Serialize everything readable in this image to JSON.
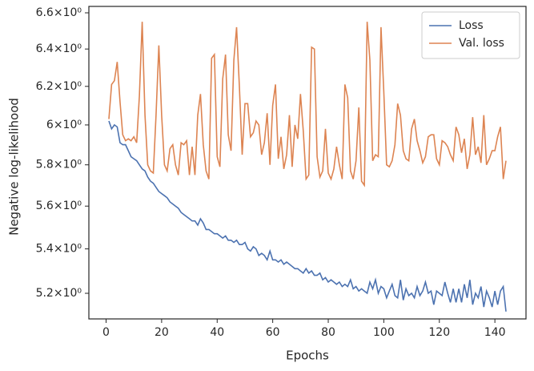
{
  "chart_data": {
    "type": "line",
    "yscale": "log",
    "legend": "upper right",
    "x_label": "Epochs",
    "y_label": "Negative log-likelihood",
    "x": [
      1,
      2,
      3,
      4,
      5,
      6,
      7,
      8,
      9,
      10,
      11,
      12,
      13,
      14,
      15,
      16,
      17,
      18,
      19,
      20,
      21,
      22,
      23,
      24,
      25,
      26,
      27,
      28,
      29,
      30,
      31,
      32,
      33,
      34,
      35,
      36,
      37,
      38,
      39,
      40,
      41,
      42,
      43,
      44,
      45,
      46,
      47,
      48,
      49,
      50,
      51,
      52,
      53,
      54,
      55,
      56,
      57,
      58,
      59,
      60,
      61,
      62,
      63,
      64,
      65,
      66,
      67,
      68,
      69,
      70,
      71,
      72,
      73,
      74,
      75,
      76,
      77,
      78,
      79,
      80,
      81,
      82,
      83,
      84,
      85,
      86,
      87,
      88,
      89,
      90,
      91,
      92,
      93,
      94,
      95,
      96,
      97,
      98,
      99,
      100,
      101,
      102,
      103,
      104,
      105,
      106,
      107,
      108,
      109,
      110,
      111,
      112,
      113,
      114,
      115,
      116,
      117,
      118,
      119,
      120,
      121,
      122,
      123,
      124,
      125,
      126,
      127,
      128,
      129,
      130,
      131,
      132,
      133,
      134,
      135,
      136,
      137,
      138,
      139,
      140,
      141,
      142,
      143,
      144
    ],
    "series": [
      {
        "name": "Loss",
        "color": "#4c72b0",
        "values": [
          6.02,
          5.98,
          6.0,
          5.99,
          5.91,
          5.9,
          5.9,
          5.87,
          5.84,
          5.83,
          5.82,
          5.8,
          5.78,
          5.77,
          5.74,
          5.72,
          5.71,
          5.69,
          5.67,
          5.66,
          5.65,
          5.64,
          5.62,
          5.61,
          5.6,
          5.59,
          5.57,
          5.56,
          5.55,
          5.54,
          5.53,
          5.53,
          5.51,
          5.54,
          5.52,
          5.49,
          5.49,
          5.48,
          5.47,
          5.47,
          5.46,
          5.45,
          5.46,
          5.44,
          5.44,
          5.43,
          5.44,
          5.42,
          5.42,
          5.43,
          5.4,
          5.39,
          5.41,
          5.4,
          5.37,
          5.38,
          5.37,
          5.35,
          5.39,
          5.35,
          5.35,
          5.34,
          5.35,
          5.33,
          5.34,
          5.33,
          5.32,
          5.31,
          5.31,
          5.3,
          5.29,
          5.31,
          5.29,
          5.3,
          5.28,
          5.28,
          5.29,
          5.26,
          5.27,
          5.25,
          5.26,
          5.25,
          5.24,
          5.25,
          5.23,
          5.24,
          5.23,
          5.26,
          5.22,
          5.23,
          5.21,
          5.22,
          5.21,
          5.2,
          5.25,
          5.22,
          5.26,
          5.2,
          5.23,
          5.22,
          5.18,
          5.21,
          5.24,
          5.19,
          5.18,
          5.26,
          5.17,
          5.22,
          5.19,
          5.2,
          5.18,
          5.23,
          5.19,
          5.21,
          5.25,
          5.2,
          5.21,
          5.15,
          5.21,
          5.2,
          5.19,
          5.25,
          5.2,
          5.16,
          5.22,
          5.16,
          5.22,
          5.16,
          5.24,
          5.18,
          5.26,
          5.15,
          5.2,
          5.18,
          5.23,
          5.14,
          5.21,
          5.18,
          5.14,
          5.21,
          5.15,
          5.21,
          5.23,
          5.12
        ]
      },
      {
        "name": "Val. loss",
        "color": "#dd8452",
        "values": [
          6.03,
          6.21,
          6.23,
          6.33,
          6.12,
          5.95,
          5.92,
          5.93,
          5.92,
          5.94,
          5.91,
          6.15,
          6.55,
          6.05,
          5.8,
          5.77,
          5.76,
          6.05,
          6.42,
          6.05,
          5.8,
          5.77,
          5.88,
          5.9,
          5.8,
          5.75,
          5.91,
          5.9,
          5.92,
          5.75,
          5.89,
          5.75,
          6.05,
          6.16,
          5.9,
          5.77,
          5.73,
          6.35,
          6.37,
          5.84,
          5.79,
          6.24,
          6.37,
          5.95,
          5.87,
          6.34,
          6.52,
          6.2,
          5.85,
          6.11,
          6.11,
          5.94,
          5.96,
          6.02,
          6.0,
          5.85,
          5.91,
          6.06,
          5.8,
          6.1,
          6.21,
          5.83,
          5.94,
          5.78,
          5.85,
          6.05,
          5.79,
          6.0,
          5.93,
          6.16,
          5.97,
          5.73,
          5.75,
          6.41,
          6.4,
          5.84,
          5.74,
          5.77,
          5.98,
          5.76,
          5.73,
          5.78,
          5.89,
          5.8,
          5.73,
          6.21,
          6.14,
          5.77,
          5.73,
          5.82,
          6.09,
          5.72,
          5.7,
          6.55,
          6.34,
          5.82,
          5.85,
          5.84,
          6.52,
          6.17,
          5.8,
          5.79,
          5.82,
          5.9,
          6.11,
          6.05,
          5.87,
          5.83,
          5.82,
          5.98,
          6.03,
          5.92,
          5.87,
          5.81,
          5.84,
          5.94,
          5.95,
          5.95,
          5.83,
          5.8,
          5.92,
          5.91,
          5.89,
          5.85,
          5.82,
          5.99,
          5.95,
          5.86,
          5.93,
          5.78,
          5.85,
          6.04,
          5.85,
          5.89,
          5.81,
          6.05,
          5.8,
          5.83,
          5.87,
          5.87,
          5.94,
          5.99,
          5.73,
          5.82
        ]
      }
    ],
    "xlim": [
      -6.2,
      151.2
    ],
    "xticks": [
      0,
      20,
      40,
      60,
      80,
      100,
      120,
      140
    ],
    "ylim": [
      5.088,
      6.636
    ],
    "yticks": [
      {
        "value": 5.2,
        "label": "5.2×10⁰"
      },
      {
        "value": 5.4,
        "label": "5.4×10⁰"
      },
      {
        "value": 5.6,
        "label": "5.6×10⁰"
      },
      {
        "value": 5.8,
        "label": "5.8×10⁰"
      },
      {
        "value": 6,
        "label": "6×10⁰"
      },
      {
        "value": 6.2,
        "label": "6.2×10⁰"
      },
      {
        "value": 6.4,
        "label": "6.4×10⁰"
      },
      {
        "value": 6.6,
        "label": "6.6×10⁰"
      }
    ]
  }
}
